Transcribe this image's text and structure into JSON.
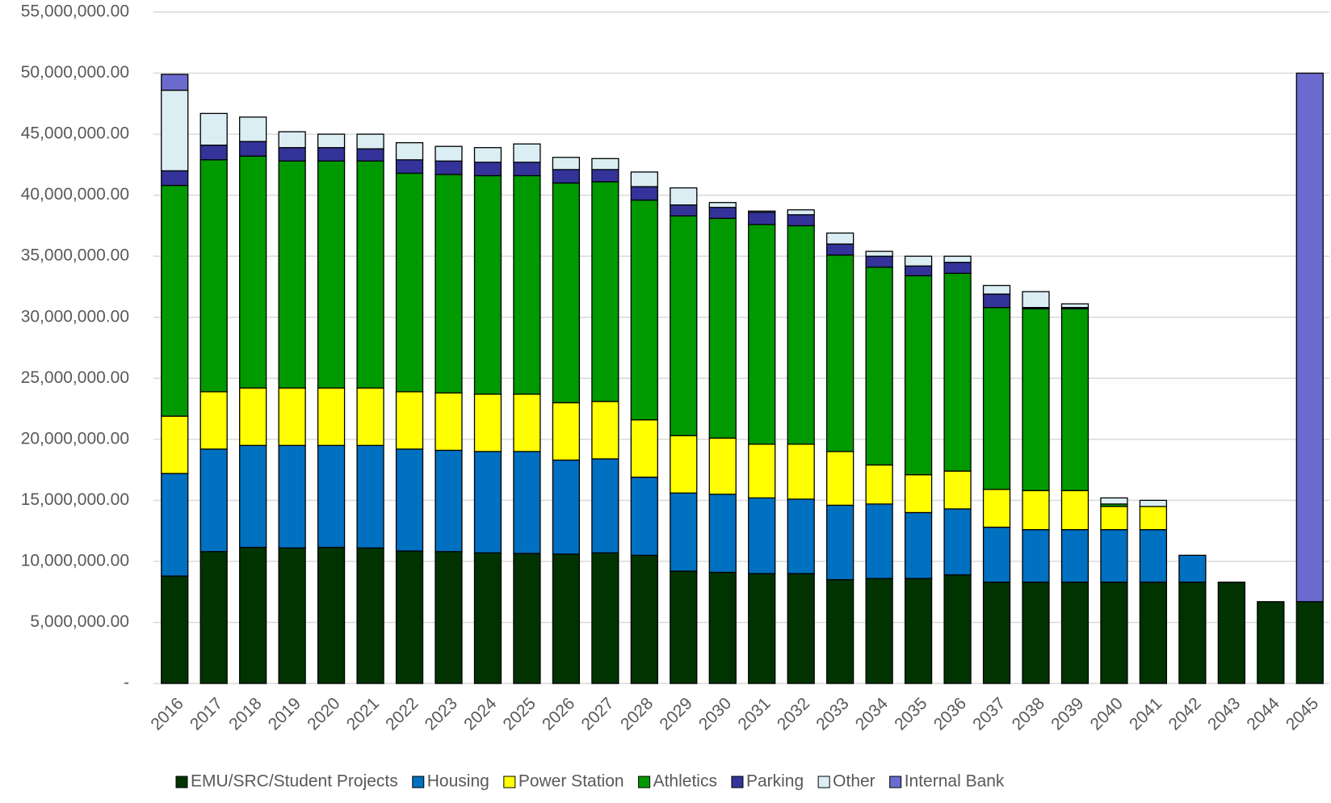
{
  "chart_data": {
    "type": "stacked_bar",
    "categories": [
      "2016",
      "2017",
      "2018",
      "2019",
      "2020",
      "2021",
      "2022",
      "2023",
      "2024",
      "2025",
      "2026",
      "2027",
      "2028",
      "2029",
      "2030",
      "2031",
      "2032",
      "2033",
      "2034",
      "2035",
      "2036",
      "2037",
      "2038",
      "2039",
      "2040",
      "2041",
      "2042",
      "2043",
      "2044",
      "2045"
    ],
    "series": [
      {
        "name": "EMU/SRC/Student Projects",
        "color": "#003300",
        "values": [
          8800000,
          10800000,
          11150000,
          11100000,
          11150000,
          11100000,
          10850000,
          10800000,
          10700000,
          10650000,
          10600000,
          10700000,
          10500000,
          9200000,
          9100000,
          9000000,
          9000000,
          8500000,
          8600000,
          8600000,
          8900000,
          8300000,
          8300000,
          8300000,
          8300000,
          8300000,
          8300000,
          8300000,
          6700000,
          6700000
        ]
      },
      {
        "name": "Housing",
        "color": "#0070c0",
        "values": [
          8400000,
          8400000,
          8350000,
          8400000,
          8350000,
          8400000,
          8350000,
          8300000,
          8300000,
          8350000,
          7700000,
          7700000,
          6400000,
          6400000,
          6400000,
          6200000,
          6100000,
          6100000,
          6100000,
          5400000,
          5400000,
          4500000,
          4300000,
          4300000,
          4300000,
          4300000,
          2200000,
          0,
          0,
          0
        ]
      },
      {
        "name": "Power Station",
        "color": "#ffff00",
        "values": [
          4700000,
          4700000,
          4700000,
          4700000,
          4700000,
          4700000,
          4700000,
          4700000,
          4700000,
          4700000,
          4700000,
          4700000,
          4700000,
          4700000,
          4600000,
          4400000,
          4500000,
          4400000,
          3200000,
          3100000,
          3100000,
          3100000,
          3200000,
          3200000,
          1900000,
          1900000,
          0,
          0,
          0,
          0
        ]
      },
      {
        "name": "Athletics",
        "color": "#009900",
        "values": [
          18900000,
          19000000,
          19000000,
          18600000,
          18600000,
          18600000,
          17900000,
          17900000,
          17900000,
          17900000,
          18000000,
          18000000,
          18000000,
          18000000,
          18000000,
          18000000,
          17900000,
          16100000,
          16200000,
          16300000,
          16200000,
          14900000,
          14900000,
          14900000,
          200000,
          0,
          0,
          0,
          0,
          0
        ]
      },
      {
        "name": "Parking",
        "color": "#333399",
        "values": [
          1200000,
          1200000,
          1200000,
          1100000,
          1100000,
          1000000,
          1100000,
          1100000,
          1100000,
          1100000,
          1100000,
          1000000,
          1100000,
          900000,
          900000,
          1000000,
          900000,
          900000,
          900000,
          800000,
          900000,
          1100000,
          100000,
          100000,
          0,
          0,
          0,
          0,
          0,
          0
        ]
      },
      {
        "name": "Other",
        "color": "#dbeef4",
        "values": [
          6600000,
          2600000,
          2000000,
          1300000,
          1100000,
          1200000,
          1400000,
          1200000,
          1200000,
          1500000,
          1000000,
          900000,
          1200000,
          1400000,
          400000,
          100000,
          400000,
          900000,
          400000,
          800000,
          500000,
          700000,
          1300000,
          300000,
          500000,
          500000,
          0,
          0,
          0,
          0
        ]
      },
      {
        "name": "Internal Bank",
        "color": "#6b6bcf",
        "values": [
          1300000,
          0,
          0,
          0,
          0,
          0,
          0,
          0,
          0,
          0,
          0,
          0,
          0,
          0,
          0,
          0,
          0,
          0,
          0,
          0,
          0,
          0,
          0,
          0,
          0,
          0,
          0,
          0,
          0,
          43300000
        ]
      }
    ],
    "ylim": [
      0,
      55000000
    ],
    "yticks": [
      {
        "value": 0,
        "label": "-"
      },
      {
        "value": 5000000,
        "label": "5,000,000.00"
      },
      {
        "value": 10000000,
        "label": "10,000,000.00"
      },
      {
        "value": 15000000,
        "label": "15,000,000.00"
      },
      {
        "value": 20000000,
        "label": "20,000,000.00"
      },
      {
        "value": 25000000,
        "label": "25,000,000.00"
      },
      {
        "value": 30000000,
        "label": "30,000,000.00"
      },
      {
        "value": 35000000,
        "label": "35,000,000.00"
      },
      {
        "value": 40000000,
        "label": "40,000,000.00"
      },
      {
        "value": 45000000,
        "label": "45,000,000.00"
      },
      {
        "value": 50000000,
        "label": "50,000,000.00"
      },
      {
        "value": 55000000,
        "label": "55,000,000.00"
      }
    ],
    "grid": true,
    "legend": "bottom"
  }
}
